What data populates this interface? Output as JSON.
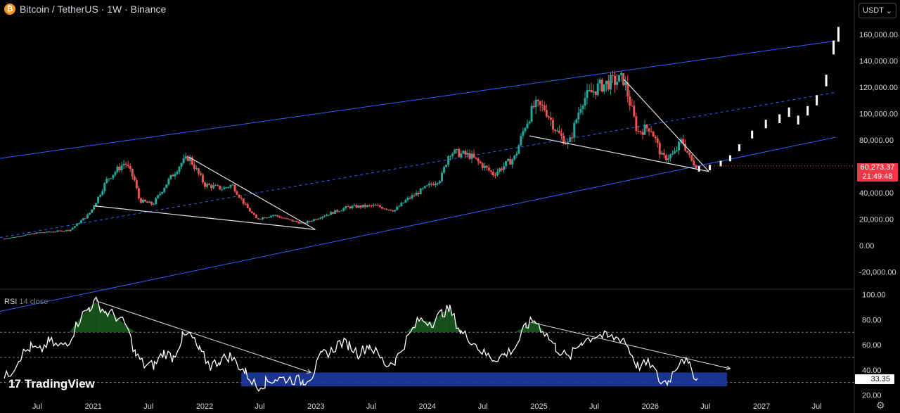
{
  "header": {
    "icon_letter": "₿",
    "symbol": "Bitcoin / TetherUS · 1W · Binance"
  },
  "currency_selector": {
    "label": "USDT",
    "chevron": "⌄"
  },
  "price_tag": {
    "price": "60,273.37",
    "countdown": "21:49:48"
  },
  "rsi_panel": {
    "label": "RSI",
    "params": "14 close",
    "current_value": "33.35"
  },
  "branding": {
    "logo_mark": "17",
    "name": "TradingView"
  },
  "settings_icon": "⚙",
  "colors": {
    "up": "#26a69a",
    "down": "#ef5350",
    "channel": "#2962ff",
    "trendline": "#e0e3eb",
    "rsi_zone": "#1e3a9f",
    "rsi_line": "#ffffff",
    "rsi_ob_fill": "#1b5e20"
  },
  "chart_data": [
    {
      "type": "candlestick",
      "title": "Bitcoin / TetherUS · 1W · Binance",
      "y_axis": {
        "ticks": [
          "160,000.00",
          "140,000.00",
          "120,000.00",
          "100,000.00",
          "80,000.00",
          "40,000.00",
          "20,000.00",
          "0.00",
          "-20,000.00"
        ],
        "range": [
          -30000,
          170000
        ]
      },
      "x_axis": {
        "ticks": [
          "Jul",
          "2021",
          "Jul",
          "2022",
          "Jul",
          "2023",
          "Jul",
          "2024",
          "Jul",
          "2025",
          "Jul",
          "2026",
          "Jul",
          "2027",
          "Jul"
        ],
        "range": [
          "2020-03",
          "2027-11"
        ]
      },
      "price_path": [
        [
          "2020-03-15",
          5000
        ],
        [
          "2020-07-01",
          9500
        ],
        [
          "2020-10-15",
          11500
        ],
        [
          "2020-12-15",
          23000
        ],
        [
          "2021-01-01",
          29000
        ],
        [
          "2021-02-15",
          50000
        ],
        [
          "2021-04-15",
          63000
        ],
        [
          "2021-05-15",
          50000
        ],
        [
          "2021-06-01",
          34000
        ],
        [
          "2021-07-15",
          31000
        ],
        [
          "2021-09-01",
          48000
        ],
        [
          "2021-10-15",
          62000
        ],
        [
          "2021-11-10",
          67000
        ],
        [
          "2022-01-01",
          46000
        ],
        [
          "2022-03-01",
          43000
        ],
        [
          "2022-04-01",
          46000
        ],
        [
          "2022-05-15",
          30000
        ],
        [
          "2022-06-20",
          20000
        ],
        [
          "2022-08-15",
          23000
        ],
        [
          "2022-10-01",
          19500
        ],
        [
          "2022-11-20",
          16500
        ],
        [
          "2023-01-20",
          22000
        ],
        [
          "2023-04-15",
          29000
        ],
        [
          "2023-07-15",
          30000
        ],
        [
          "2023-09-15",
          26500
        ],
        [
          "2023-10-25",
          34500
        ],
        [
          "2023-12-15",
          42000
        ],
        [
          "2024-02-15",
          51000
        ],
        [
          "2024-03-14",
          71000
        ],
        [
          "2024-05-20",
          68000
        ],
        [
          "2024-08-05",
          54000
        ],
        [
          "2024-10-15",
          67000
        ],
        [
          "2024-11-15",
          90000
        ],
        [
          "2024-12-17",
          106000
        ],
        [
          "2025-01-20",
          104000
        ],
        [
          "2025-03-01",
          86000
        ],
        [
          "2025-04-09",
          76000
        ],
        [
          "2025-05-22",
          110000
        ],
        [
          "2025-07-14",
          120000
        ],
        [
          "2025-08-14",
          123000
        ],
        [
          "2025-10-06",
          126000
        ],
        [
          "2025-11-20",
          86000
        ],
        [
          "2026-01-01",
          90000
        ],
        [
          "2026-02-10",
          66000
        ],
        [
          "2026-03-20",
          69000
        ],
        [
          "2026-04-15",
          80000
        ],
        [
          "2026-05-15",
          64000
        ],
        [
          "2026-06-05",
          60273.37
        ]
      ],
      "projection_path": [
        [
          "2026-06-10",
          58000
        ],
        [
          "2026-07-15",
          59000
        ],
        [
          "2026-08-20",
          62000
        ],
        [
          "2026-09-20",
          66000
        ],
        [
          "2026-10-20",
          74000
        ],
        [
          "2026-12-01",
          84000
        ],
        [
          "2027-01-15",
          92000
        ],
        [
          "2027-03-01",
          96000
        ],
        [
          "2027-04-01",
          101000
        ],
        [
          "2027-05-01",
          95000
        ],
        [
          "2027-06-01",
          102000
        ],
        [
          "2027-07-01",
          110000
        ],
        [
          "2027-08-01",
          125000
        ],
        [
          "2027-08-25",
          150000
        ],
        [
          "2027-09-10",
          160000
        ]
      ],
      "regression_channel": {
        "upper": [
          [
            "2020-03-01",
            66000
          ],
          [
            "2027-09-01",
            155000
          ]
        ],
        "middle": [
          [
            "2020-03-01",
            6000
          ],
          [
            "2027-09-01",
            116000
          ]
        ],
        "lower": [
          [
            "2020-03-01",
            -50000
          ],
          [
            "2027-09-01",
            82000
          ]
        ]
      },
      "trendlines": [
        [
          [
            "2021-01-01",
            30000
          ],
          [
            "2022-12-30",
            12000
          ]
        ],
        [
          [
            "2021-11-10",
            67000
          ],
          [
            "2022-12-30",
            12000
          ]
        ],
        [
          [
            "2024-12-01",
            83000
          ],
          [
            "2026-07-12",
            56000
          ]
        ],
        [
          [
            "2025-10-06",
            126000
          ],
          [
            "2026-07-12",
            56000
          ]
        ]
      ]
    },
    {
      "type": "line",
      "title": "RSI 14 close",
      "y_axis": {
        "ticks": [
          "100.00",
          "80.00",
          "60.00",
          "40.00",
          "20.00"
        ],
        "range": [
          17.5,
          101.5
        ]
      },
      "levels": [
        70,
        50,
        30
      ],
      "rsi_path": [
        [
          "2020-03-15",
          33
        ],
        [
          "2020-04-10",
          40
        ],
        [
          "2020-05-10",
          52
        ],
        [
          "2020-06-10",
          58
        ],
        [
          "2020-07-10",
          55
        ],
        [
          "2020-08-10",
          63
        ],
        [
          "2020-09-10",
          58
        ],
        [
          "2020-10-15",
          64
        ],
        [
          "2020-11-20",
          82
        ],
        [
          "2020-12-20",
          90
        ],
        [
          "2021-01-10",
          94
        ],
        [
          "2021-02-10",
          86
        ],
        [
          "2021-03-10",
          84
        ],
        [
          "2021-04-20",
          75
        ],
        [
          "2021-05-20",
          52
        ],
        [
          "2021-06-20",
          43
        ],
        [
          "2021-07-20",
          44
        ],
        [
          "2021-08-20",
          54
        ],
        [
          "2021-09-20",
          50
        ],
        [
          "2021-10-20",
          66
        ],
        [
          "2021-11-15",
          68
        ],
        [
          "2021-12-15",
          55
        ],
        [
          "2022-01-20",
          43
        ],
        [
          "2022-02-20",
          48
        ],
        [
          "2022-03-25",
          51
        ],
        [
          "2022-05-15",
          38
        ],
        [
          "2022-06-20",
          27
        ],
        [
          "2022-07-20",
          30
        ],
        [
          "2022-08-20",
          33
        ],
        [
          "2022-10-01",
          33
        ],
        [
          "2022-11-20",
          31
        ],
        [
          "2022-12-20",
          36
        ],
        [
          "2023-01-20",
          52
        ],
        [
          "2023-02-20",
          55
        ],
        [
          "2023-03-20",
          62
        ],
        [
          "2023-04-20",
          60
        ],
        [
          "2023-05-20",
          53
        ],
        [
          "2023-06-25",
          60
        ],
        [
          "2023-08-20",
          44
        ],
        [
          "2023-09-20",
          48
        ],
        [
          "2023-10-25",
          64
        ],
        [
          "2023-12-05",
          80
        ],
        [
          "2024-01-20",
          78
        ],
        [
          "2024-02-20",
          86
        ],
        [
          "2024-03-15",
          88
        ],
        [
          "2024-04-20",
          70
        ],
        [
          "2024-05-25",
          64
        ],
        [
          "2024-07-05",
          53
        ],
        [
          "2024-08-05",
          49
        ],
        [
          "2024-09-10",
          52
        ],
        [
          "2024-10-15",
          58
        ],
        [
          "2024-11-20",
          75
        ],
        [
          "2024-12-17",
          80
        ],
        [
          "2025-01-20",
          70
        ],
        [
          "2025-02-25",
          58
        ],
        [
          "2025-04-08",
          49
        ],
        [
          "2025-05-22",
          63
        ],
        [
          "2025-07-14",
          68
        ],
        [
          "2025-08-14",
          66
        ],
        [
          "2025-10-06",
          65
        ],
        [
          "2025-11-20",
          43
        ],
        [
          "2026-01-01",
          45
        ],
        [
          "2026-02-05",
          30
        ],
        [
          "2026-03-01",
          31
        ],
        [
          "2026-04-15",
          51
        ],
        [
          "2026-05-10",
          42
        ],
        [
          "2026-06-05",
          33.35
        ]
      ],
      "trendlines": [
        [
          [
            "2021-01-10",
            95
          ],
          [
            "2022-12-15",
            38
          ]
        ],
        [
          [
            "2024-12-05",
            78
          ],
          [
            "2026-09-20",
            41
          ]
        ]
      ],
      "support_zone": {
        "x": [
          "2022-05-01",
          "2026-09-10"
        ],
        "y": [
          27,
          38
        ]
      }
    }
  ]
}
